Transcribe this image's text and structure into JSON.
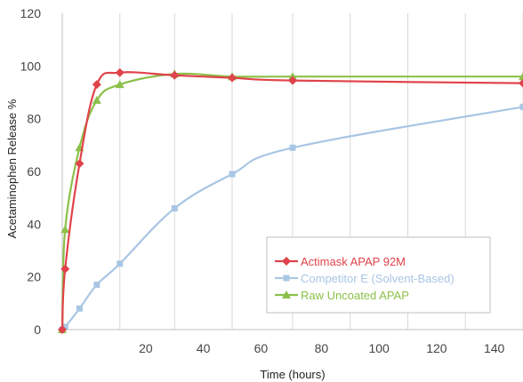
{
  "chart_data": {
    "type": "line",
    "xlabel": "Time (hours)",
    "ylabel": "Acetaminophen Release %",
    "xlim": [
      0,
      140
    ],
    "ylim": [
      0,
      120
    ],
    "xticks": [
      "20",
      "40",
      "60",
      "80",
      "100",
      "120",
      "140"
    ],
    "yticks": [
      "0",
      "20",
      "40",
      "60",
      "80",
      "100",
      "120"
    ],
    "grid": "vertical",
    "legend_position": "lower-right",
    "series": [
      {
        "name": "Actimask APAP 92M",
        "color": "#e0434b",
        "marker": "diamond",
        "x": [
          0,
          1,
          6,
          12,
          20,
          39,
          59,
          80,
          160
        ],
        "y": [
          0,
          23,
          63,
          93,
          97.5,
          96.5,
          95.5,
          94.5,
          93.5
        ]
      },
      {
        "name": "Competitor E (Solvent-Based)",
        "color": "#a9c6e4",
        "marker": "square",
        "x": [
          0,
          1,
          6,
          12,
          20,
          39,
          59,
          80,
          160
        ],
        "y": [
          0,
          1,
          8,
          17,
          25,
          46,
          59,
          69,
          84.5
        ]
      },
      {
        "name": "Raw Uncoated APAP",
        "color": "#8dc04a",
        "marker": "triangle",
        "x": [
          0,
          1,
          6,
          12,
          20,
          39,
          59,
          80,
          160
        ],
        "y": [
          0,
          38,
          69,
          87,
          93,
          97,
          96,
          96,
          96
        ]
      }
    ]
  }
}
